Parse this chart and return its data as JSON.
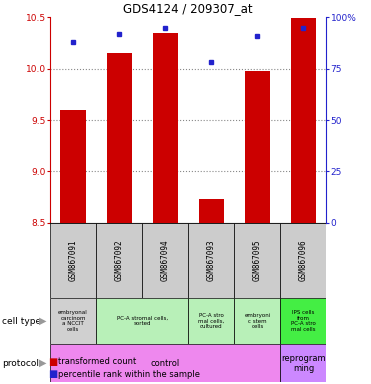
{
  "title": "GDS4124 / 209307_at",
  "samples": [
    "GSM867091",
    "GSM867092",
    "GSM867094",
    "GSM867093",
    "GSM867095",
    "GSM867096"
  ],
  "bar_values": [
    9.6,
    10.15,
    10.35,
    8.73,
    9.98,
    10.49
  ],
  "percentile_values": [
    88,
    92,
    95,
    78,
    91,
    95
  ],
  "ylim_left": [
    8.5,
    10.5
  ],
  "ylim_right": [
    0,
    100
  ],
  "yticks_left": [
    8.5,
    9.0,
    9.5,
    10.0,
    10.5
  ],
  "yticks_right": [
    0,
    25,
    50,
    75,
    100
  ],
  "bar_color": "#cc0000",
  "dot_color": "#2222cc",
  "bar_width": 0.55,
  "cell_types": [
    {
      "label": "embryonal\ncarcinom\na NCCIT\ncells",
      "span": [
        0,
        1
      ],
      "color": "#d0d0d0"
    },
    {
      "label": "PC-A stromal cells,\nsorted",
      "span": [
        1,
        3
      ],
      "color": "#b8f0b8"
    },
    {
      "label": "PC-A stro\nmal cells,\ncultured",
      "span": [
        3,
        4
      ],
      "color": "#b8f0b8"
    },
    {
      "label": "embryoni\nc stem\ncells",
      "span": [
        4,
        5
      ],
      "color": "#b8f0b8"
    },
    {
      "label": "IPS cells\nfrom\nPC-A stro\nmal cells",
      "span": [
        5,
        6
      ],
      "color": "#44ee44"
    }
  ],
  "protocols": [
    {
      "label": "control",
      "span": [
        0,
        5
      ],
      "color": "#ee88ee"
    },
    {
      "label": "reprogram\nming",
      "span": [
        5,
        6
      ],
      "color": "#cc88ff"
    }
  ],
  "ylabel_left_color": "#cc0000",
  "ylabel_right_color": "#2222cc",
  "grid_color": "#888888",
  "bg_color": "#ffffff"
}
